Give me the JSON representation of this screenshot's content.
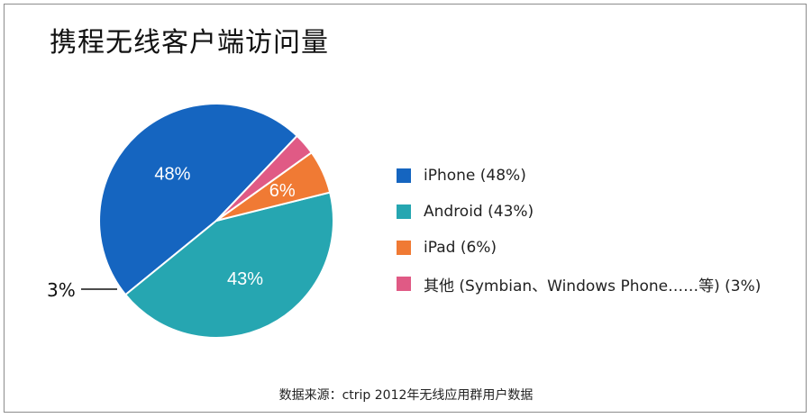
{
  "chart_data": {
    "type": "pie",
    "title": "携程无线客户端访问量",
    "categories": [
      "iPhone (48%)",
      "Android (43%)",
      "iPad (6%)",
      "其他 (Symbian、Windows Phone……等) (3%)"
    ],
    "values": [
      48,
      43,
      6,
      3
    ],
    "data_labels": [
      "48%",
      "43%",
      "6%",
      "3%"
    ],
    "colors": [
      "#1565c0",
      "#26a6b1",
      "#f07a34",
      "#e05a85"
    ],
    "legend_position": "right",
    "source": "数据来源：ctrip 2012年无线应用群用户数据"
  }
}
